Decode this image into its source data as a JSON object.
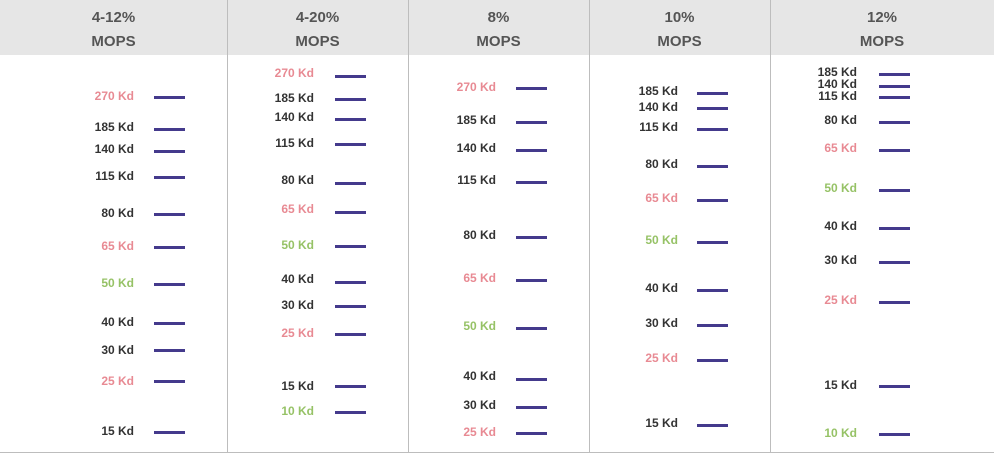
{
  "colors": {
    "band": "#443a8c",
    "label_default": "#333333",
    "label_25": "#e88a93",
    "label_50": "#96c266",
    "header_bg": "#e6e6e6",
    "header_text": "#555555"
  },
  "chart_data": {
    "type": "table",
    "units": "Kd",
    "lanes": [
      {
        "header": [
          "4-12%",
          "MOPS"
        ],
        "bands": [
          {
            "size": 270,
            "label": "270 Kd",
            "tone": "pink"
          },
          {
            "size": 185,
            "label": "185 Kd",
            "tone": "default"
          },
          {
            "size": 140,
            "label": "140 Kd",
            "tone": "default"
          },
          {
            "size": 115,
            "label": "115 Kd",
            "tone": "default"
          },
          {
            "size": 80,
            "label": "80 Kd",
            "tone": "default"
          },
          {
            "size": 65,
            "label": "65 Kd",
            "tone": "pink"
          },
          {
            "size": 50,
            "label": "50 Kd",
            "tone": "green"
          },
          {
            "size": 40,
            "label": "40 Kd",
            "tone": "default"
          },
          {
            "size": 30,
            "label": "30 Kd",
            "tone": "default"
          },
          {
            "size": 25,
            "label": "25 Kd",
            "tone": "pink"
          },
          {
            "size": 15,
            "label": "15 Kd",
            "tone": "default"
          }
        ]
      },
      {
        "header": [
          "4-20%",
          "MOPS"
        ],
        "bands": [
          {
            "size": 270,
            "label": "270 Kd",
            "tone": "pink"
          },
          {
            "size": 185,
            "label": "185 Kd",
            "tone": "default"
          },
          {
            "size": 140,
            "label": "140 Kd",
            "tone": "default"
          },
          {
            "size": 115,
            "label": "115 Kd",
            "tone": "default"
          },
          {
            "size": 80,
            "label": "80 Kd",
            "tone": "default"
          },
          {
            "size": 65,
            "label": "65 Kd",
            "tone": "pink"
          },
          {
            "size": 50,
            "label": "50 Kd",
            "tone": "green"
          },
          {
            "size": 40,
            "label": "40 Kd",
            "tone": "default"
          },
          {
            "size": 30,
            "label": "30 Kd",
            "tone": "default"
          },
          {
            "size": 25,
            "label": "25 Kd",
            "tone": "pink"
          },
          {
            "size": 15,
            "label": "15 Kd",
            "tone": "default"
          },
          {
            "size": 10,
            "label": "10 Kd",
            "tone": "green"
          }
        ]
      },
      {
        "header": [
          "8%",
          "MOPS"
        ],
        "bands": [
          {
            "size": 270,
            "label": "270 Kd",
            "tone": "pink"
          },
          {
            "size": 185,
            "label": "185 Kd",
            "tone": "default"
          },
          {
            "size": 140,
            "label": "140 Kd",
            "tone": "default"
          },
          {
            "size": 115,
            "label": "115 Kd",
            "tone": "default"
          },
          {
            "size": 80,
            "label": "80 Kd",
            "tone": "default"
          },
          {
            "size": 65,
            "label": "65 Kd",
            "tone": "pink"
          },
          {
            "size": 50,
            "label": "50 Kd",
            "tone": "green"
          },
          {
            "size": 40,
            "label": "40 Kd",
            "tone": "default"
          },
          {
            "size": 30,
            "label": "30 Kd",
            "tone": "default"
          },
          {
            "size": 25,
            "label": "25 Kd",
            "tone": "pink"
          }
        ]
      },
      {
        "header": [
          "10%",
          "MOPS"
        ],
        "bands": [
          {
            "size": 185,
            "label": "185 Kd",
            "tone": "default"
          },
          {
            "size": 140,
            "label": "140 Kd",
            "tone": "default"
          },
          {
            "size": 115,
            "label": "115 Kd",
            "tone": "default"
          },
          {
            "size": 80,
            "label": "80 Kd",
            "tone": "default"
          },
          {
            "size": 65,
            "label": "65 Kd",
            "tone": "pink"
          },
          {
            "size": 50,
            "label": "50 Kd",
            "tone": "green"
          },
          {
            "size": 40,
            "label": "40 Kd",
            "tone": "default"
          },
          {
            "size": 30,
            "label": "30 Kd",
            "tone": "default"
          },
          {
            "size": 25,
            "label": "25 Kd",
            "tone": "pink"
          },
          {
            "size": 15,
            "label": "15 Kd",
            "tone": "default"
          }
        ]
      },
      {
        "header": [
          "12%",
          "MOPS"
        ],
        "bands": [
          {
            "size": 185,
            "label": "185 Kd",
            "tone": "default"
          },
          {
            "size": 140,
            "label": "140 Kd",
            "tone": "default"
          },
          {
            "size": 115,
            "label": "115 Kd",
            "tone": "default"
          },
          {
            "size": 80,
            "label": "80 Kd",
            "tone": "default"
          },
          {
            "size": 65,
            "label": "65 Kd",
            "tone": "pink"
          },
          {
            "size": 50,
            "label": "50 Kd",
            "tone": "green"
          },
          {
            "size": 40,
            "label": "40 Kd",
            "tone": "default"
          },
          {
            "size": 30,
            "label": "30 Kd",
            "tone": "default"
          },
          {
            "size": 25,
            "label": "25 Kd",
            "tone": "pink"
          },
          {
            "size": 15,
            "label": "15 Kd",
            "tone": "default"
          },
          {
            "size": 10,
            "label": "10 Kd",
            "tone": "green"
          }
        ]
      }
    ]
  }
}
